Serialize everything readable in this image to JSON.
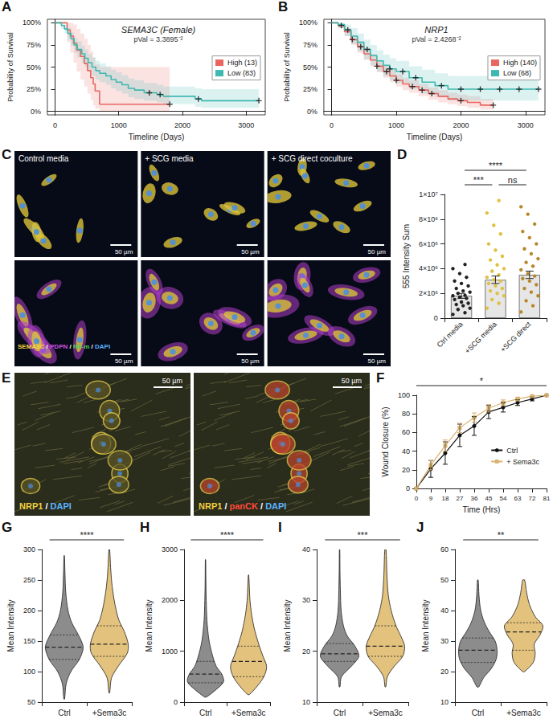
{
  "chart_data": [
    {
      "panel_label": "A",
      "type": "survival",
      "title": "SEMA3C (Female)",
      "subtitle": "pVal = 3.3895⁻²",
      "x_label": "Timeline (Days)",
      "y_label": "Probability of Survival",
      "xlim": [
        -120,
        3300
      ],
      "xticks": [
        0,
        1000,
        2000,
        3000
      ],
      "ylim": [
        -4,
        104
      ],
      "yticks": [
        {
          "value": 0,
          "label": "0%"
        },
        {
          "value": 25,
          "label": "25%"
        },
        {
          "value": 50,
          "label": "50%"
        },
        {
          "value": 75,
          "label": "75%"
        },
        {
          "value": 100,
          "label": "100%"
        }
      ],
      "legend": "right",
      "grid": false,
      "series": [
        {
          "name": "High (13)",
          "color": "#e8665f",
          "x": [
            0,
            190,
            240,
            290,
            340,
            400,
            460,
            510,
            560,
            600,
            630,
            700,
            1800
          ],
          "values": [
            100,
            92,
            85,
            77,
            69,
            62,
            54,
            46,
            38,
            31,
            23,
            8,
            8
          ],
          "lower": [
            100,
            78,
            66,
            55,
            45,
            36,
            28,
            20,
            13,
            7,
            3,
            0,
            0
          ],
          "upper": [
            100,
            100,
            100,
            98,
            93,
            88,
            82,
            75,
            68,
            61,
            53,
            50,
            50
          ],
          "censored": [
            1800
          ]
        },
        {
          "name": "Low (83)",
          "color": "#3fb8b0",
          "x": [
            0,
            100,
            150,
            200,
            250,
            300,
            350,
            420,
            470,
            520,
            580,
            640,
            700,
            800,
            880,
            960,
            1050,
            1150,
            1250,
            1400,
            1600,
            1700,
            2200,
            2300,
            3200
          ],
          "values": [
            100,
            97,
            93,
            88,
            82,
            75,
            70,
            65,
            60,
            55,
            50,
            46,
            43,
            40,
            36,
            33,
            30,
            26,
            24,
            21,
            19,
            17,
            14,
            12,
            12
          ],
          "lower": [
            100,
            93,
            88,
            81,
            74,
            66,
            61,
            55,
            50,
            45,
            40,
            36,
            33,
            30,
            26,
            23,
            20,
            16,
            14,
            12,
            10,
            8,
            5,
            4,
            4
          ],
          "upper": [
            100,
            100,
            98,
            94,
            89,
            83,
            79,
            74,
            70,
            65,
            61,
            57,
            54,
            51,
            47,
            44,
            41,
            37,
            35,
            32,
            30,
            28,
            26,
            25,
            25
          ],
          "censored": [
            1480,
            1650,
            2250,
            3200
          ]
        }
      ]
    },
    {
      "panel_label": "B",
      "type": "survival",
      "title": "NRP1",
      "subtitle": "pVal = 2.4268⁻²",
      "x_label": "Timeline (Days)",
      "y_label": "Probability of Survival",
      "xlim": [
        -120,
        3300
      ],
      "xticks": [
        0,
        1000,
        2000,
        3000
      ],
      "ylim": [
        -4,
        104
      ],
      "yticks": [
        {
          "value": 0,
          "label": "0%"
        },
        {
          "value": 25,
          "label": "25%"
        },
        {
          "value": 50,
          "label": "50%"
        },
        {
          "value": 75,
          "label": "75%"
        },
        {
          "value": 100,
          "label": "100%"
        }
      ],
      "legend": "right",
      "grid": false,
      "series": [
        {
          "name": "High (140)",
          "color": "#e8665f",
          "x": [
            0,
            100,
            200,
            300,
            400,
            500,
            600,
            700,
            800,
            900,
            1000,
            1100,
            1200,
            1350,
            1500,
            1650,
            1800,
            1950,
            2100,
            2300,
            2500
          ],
          "values": [
            100,
            97,
            90,
            81,
            73,
            65,
            58,
            51,
            45,
            40,
            35,
            31,
            28,
            24,
            20,
            17,
            14,
            12,
            10,
            7,
            7
          ],
          "lower": [
            100,
            94,
            85,
            75,
            66,
            58,
            51,
            44,
            38,
            33,
            28,
            24,
            21,
            17,
            13,
            10,
            8,
            6,
            4,
            2,
            2
          ],
          "upper": [
            100,
            99,
            94,
            86,
            79,
            72,
            65,
            58,
            52,
            47,
            42,
            38,
            35,
            31,
            27,
            24,
            21,
            19,
            17,
            14,
            14
          ],
          "censored": [
            150,
            320,
            450,
            700,
            850,
            1000,
            1250,
            1400,
            1550,
            2000,
            2500
          ]
        },
        {
          "name": "Low (68)",
          "color": "#3fb8b0",
          "x": [
            0,
            100,
            200,
            300,
            400,
            500,
            600,
            700,
            800,
            900,
            1000,
            1200,
            1400,
            1600,
            1800,
            3200
          ],
          "values": [
            100,
            98,
            92,
            85,
            78,
            70,
            63,
            57,
            52,
            48,
            45,
            38,
            33,
            29,
            25,
            25
          ],
          "lower": [
            100,
            94,
            85,
            76,
            68,
            59,
            52,
            45,
            40,
            35,
            32,
            25,
            20,
            16,
            12,
            12
          ],
          "upper": [
            100,
            100,
            98,
            94,
            88,
            81,
            75,
            69,
            64,
            60,
            57,
            51,
            47,
            43,
            40,
            40
          ],
          "censored": [
            250,
            550,
            900,
            1100,
            1300,
            1700,
            2000,
            2300,
            2600,
            2900,
            3200
          ]
        }
      ]
    },
    {
      "panel_label": "C",
      "type": "image",
      "columns": [
        "Control media",
        "+ SCG media",
        "+ SCG direct coculture"
      ],
      "channels": {
        "label": "SEMA3C / PDPN / NF-m / DAPI",
        "colors": [
          "#f5d742",
          "#d050e0",
          "#50d060",
          "#5ab4ff"
        ]
      },
      "scale_bar": "50 µm"
    },
    {
      "panel_label": "D",
      "type": "bar",
      "y_label": "555 Intensity Sum",
      "categories": [
        "Ctrl media",
        "+SCG media",
        "+SCG direct"
      ],
      "values": [
        1800000,
        3100000,
        3500000
      ],
      "errors": [
        200000,
        300000,
        300000
      ],
      "color": "#e6e6e6",
      "points": [
        {
          "color": "#222222",
          "values": [
            300000,
            500000,
            700000,
            800000,
            1000000,
            1100000,
            1200000,
            1300000,
            1500000,
            1600000,
            1700000,
            1800000,
            1900000,
            2000000,
            2100000,
            2200000,
            2400000,
            2600000,
            2800000,
            3000000,
            3300000,
            3600000,
            4000000,
            4400000
          ]
        },
        {
          "color": "#e0c040",
          "values": [
            800000,
            1200000,
            1500000,
            1800000,
            2000000,
            2200000,
            2400000,
            2600000,
            2800000,
            3000000,
            3100000,
            3300000,
            3500000,
            3800000,
            4000000,
            4300000,
            4700000,
            5000000,
            5500000,
            6000000,
            6800000,
            7500000,
            8500000,
            9500000
          ]
        },
        {
          "color": "#b8862b",
          "values": [
            500000,
            1000000,
            1400000,
            1800000,
            2100000,
            2400000,
            2700000,
            3000000,
            3200000,
            3400000,
            3600000,
            3900000,
            4200000,
            4500000,
            4800000,
            5200000,
            5600000,
            6000000,
            6500000,
            7000000,
            7600000,
            8400000,
            9000000
          ]
        }
      ],
      "ylim": [
        0,
        10000000
      ],
      "yticks": [
        0,
        {
          "value": 2000000,
          "label": "2×10⁶"
        },
        {
          "value": 4000000,
          "label": "4×10⁶"
        },
        {
          "value": 6000000,
          "label": "6×10⁶"
        },
        {
          "value": 8000000,
          "label": "8×10⁶"
        },
        {
          "value": 10000000,
          "label": "1×10⁷"
        }
      ],
      "grid": false,
      "annotations": [
        {
          "from": 0,
          "to": 1,
          "label": "***"
        },
        {
          "from": 0,
          "to": 2,
          "label": "****"
        },
        {
          "from": 1,
          "to": 2,
          "label": "ns"
        }
      ]
    },
    {
      "panel_label": "E",
      "type": "image",
      "images": [
        {
          "label": "NRP1 / DAPI",
          "colors": [
            "#f0d040",
            "#5ab4ff"
          ]
        },
        {
          "label": "NRP1 / panCK / DAPI",
          "colors": [
            "#f0d040",
            "#ff4a3a",
            "#5ab4ff"
          ]
        }
      ],
      "scale_bar": "50 µm"
    },
    {
      "panel_label": "F",
      "type": "line",
      "x_label": "Time (Hrs)",
      "y_label": "Wound Closure (%)",
      "x": [
        0,
        9,
        18,
        27,
        36,
        45,
        54,
        63,
        72,
        81
      ],
      "series": [
        {
          "name": "Ctrl",
          "color": "#111111",
          "marker": "circle",
          "line_style": "solid",
          "values": [
            0,
            21,
            38,
            57,
            67,
            82,
            87,
            92,
            96,
            100
          ],
          "errors": [
            0,
            9,
            12,
            12,
            10,
            7,
            5,
            3,
            2,
            0
          ]
        },
        {
          "name": "+ Sema3c",
          "color": "#d9b26f",
          "marker": "square",
          "line_style": "solid",
          "values": [
            0,
            25,
            46,
            65,
            76,
            86,
            92,
            96,
            99,
            100
          ],
          "errors": [
            0,
            5,
            6,
            5,
            5,
            4,
            3,
            2,
            1,
            0
          ]
        }
      ],
      "xlim": [
        0,
        81
      ],
      "xticks": [
        0,
        9,
        18,
        27,
        36,
        45,
        54,
        63,
        72,
        81
      ],
      "ylim": [
        0,
        100
      ],
      "yticks": [
        0,
        20,
        40,
        60,
        80,
        100
      ],
      "legend": "right",
      "grid": false,
      "annotations": [
        {
          "from": 0,
          "to": 81,
          "label": "*"
        }
      ]
    },
    {
      "panel_label": "G",
      "type": "violin",
      "y_label": "Mean Intensity",
      "categories": [
        "Ctrl",
        "+Sema3c"
      ],
      "ylim": [
        50,
        300
      ],
      "yticks": [
        50,
        100,
        150,
        200,
        250,
        300
      ],
      "grid": false,
      "violins": [
        {
          "color": "#8c8c8c",
          "y": [
            55,
            80,
            100,
            120,
            140,
            160,
            180,
            200,
            230,
            260,
            290
          ],
          "density": [
            0.02,
            0.1,
            0.35,
            0.8,
            1,
            0.75,
            0.4,
            0.2,
            0.08,
            0.04,
            0.01
          ],
          "q1": 120,
          "median": 140,
          "q3": 160
        },
        {
          "color": "#e2c27d",
          "y": [
            65,
            90,
            110,
            130,
            145,
            165,
            185,
            210,
            240,
            270,
            300
          ],
          "density": [
            0.02,
            0.12,
            0.5,
            0.95,
            1,
            0.8,
            0.5,
            0.3,
            0.15,
            0.07,
            0.02
          ],
          "q1": 125,
          "median": 145,
          "q3": 175
        }
      ],
      "annotations": [
        {
          "from": 0,
          "to": 1,
          "label": "****"
        }
      ]
    },
    {
      "panel_label": "H",
      "type": "violin",
      "y_label": "Mean Intensity",
      "categories": [
        "Ctrl",
        "+Sema3c"
      ],
      "ylim": [
        0,
        3000
      ],
      "yticks": [
        0,
        1000,
        2000,
        3000
      ],
      "grid": false,
      "violins": [
        {
          "color": "#8c8c8c",
          "y": [
            100,
            250,
            400,
            550,
            700,
            900,
            1200,
            1600,
            2000,
            2400,
            2800
          ],
          "density": [
            0.05,
            0.6,
            1,
            0.9,
            0.6,
            0.4,
            0.2,
            0.08,
            0.04,
            0.02,
            0.01
          ],
          "q1": 380,
          "median": 550,
          "q3": 800
        },
        {
          "color": "#e2c27d",
          "y": [
            150,
            300,
            500,
            700,
            900,
            1100,
            1400,
            1700,
            2000,
            2300,
            2500
          ],
          "density": [
            0.05,
            0.45,
            0.85,
            1,
            0.8,
            0.6,
            0.35,
            0.18,
            0.08,
            0.04,
            0.01
          ],
          "q1": 500,
          "median": 800,
          "q3": 1100
        }
      ],
      "annotations": [
        {
          "from": 0,
          "to": 1,
          "label": "****"
        }
      ]
    },
    {
      "panel_label": "I",
      "type": "violin",
      "y_label": "Mean Intensity",
      "categories": [
        "Ctrl",
        "+Sema3c"
      ],
      "ylim": [
        10,
        40
      ],
      "yticks": [
        10,
        20,
        30,
        40
      ],
      "grid": false,
      "violins": [
        {
          "color": "#8c8c8c",
          "y": [
            13,
            15,
            17,
            19,
            21,
            23,
            25,
            28,
            32,
            36,
            40
          ],
          "density": [
            0.02,
            0.1,
            0.6,
            1,
            0.8,
            0.4,
            0.2,
            0.08,
            0.04,
            0.02,
            0.01
          ],
          "q1": 18,
          "median": 19.5,
          "q3": 21.5
        },
        {
          "color": "#e2c27d",
          "y": [
            13,
            15,
            17,
            19,
            21,
            23,
            25,
            28,
            31,
            35,
            40
          ],
          "density": [
            0.02,
            0.1,
            0.45,
            0.9,
            1,
            0.8,
            0.55,
            0.3,
            0.15,
            0.08,
            0.03
          ],
          "q1": 19,
          "median": 21,
          "q3": 25
        }
      ],
      "annotations": [
        {
          "from": 0,
          "to": 1,
          "label": "***"
        }
      ]
    },
    {
      "panel_label": "J",
      "type": "violin",
      "y_label": "Mean Intensity",
      "categories": [
        "Ctrl",
        "+Sema3c"
      ],
      "ylim": [
        10,
        60
      ],
      "yticks": [
        10,
        20,
        30,
        40,
        50,
        60
      ],
      "grid": false,
      "violins": [
        {
          "color": "#8c8c8c",
          "y": [
            15,
            18,
            21,
            24,
            27,
            30,
            33,
            36,
            40,
            45,
            50
          ],
          "density": [
            0.05,
            0.3,
            0.7,
            0.95,
            1,
            0.9,
            0.6,
            0.35,
            0.15,
            0.06,
            0.02
          ],
          "q1": 23,
          "median": 27,
          "q3": 31
        },
        {
          "color": "#e2c27d",
          "y": [
            20,
            23,
            26,
            29,
            32,
            35,
            38,
            42,
            46,
            50
          ],
          "density": [
            0.05,
            0.5,
            0.6,
            0.55,
            0.85,
            1,
            0.6,
            0.3,
            0.15,
            0.05
          ],
          "q1": 27,
          "median": 33,
          "q3": 36
        }
      ],
      "annotations": [
        {
          "from": 0,
          "to": 1,
          "label": "**"
        }
      ]
    }
  ]
}
